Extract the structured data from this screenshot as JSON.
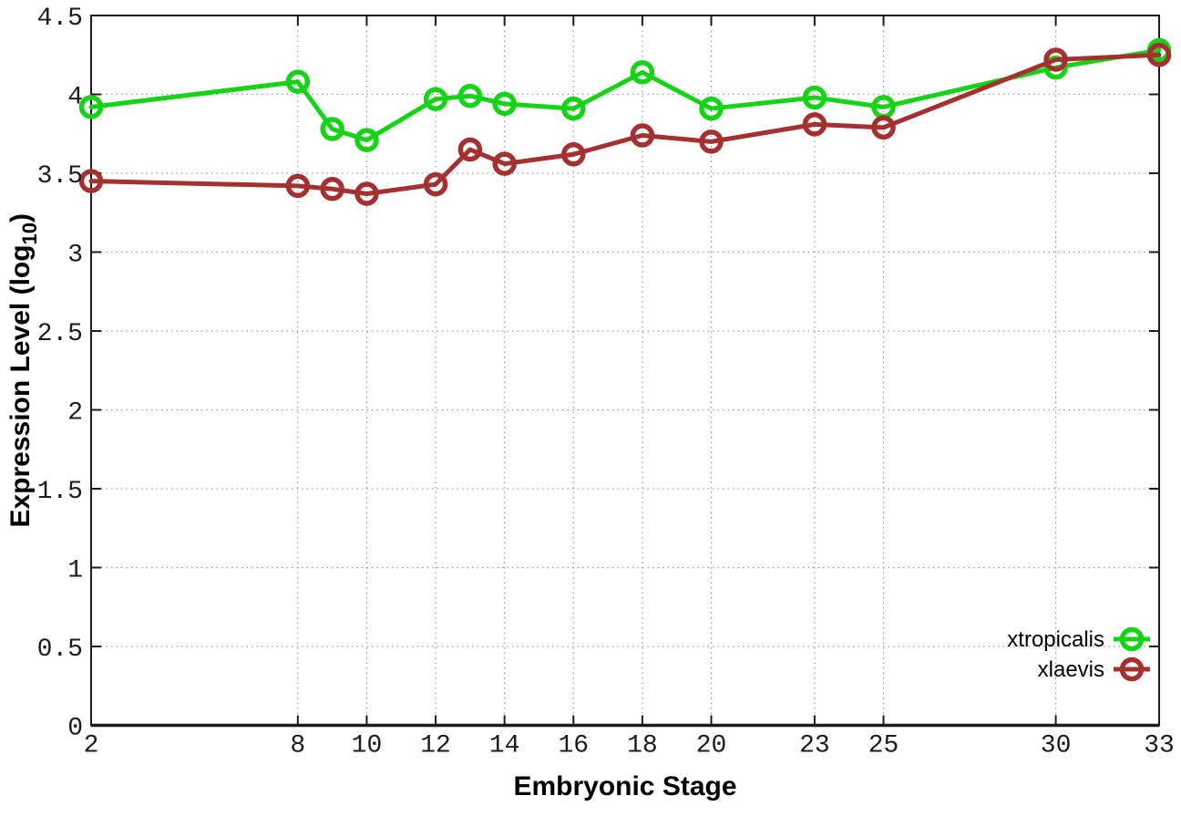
{
  "chart_data": {
    "type": "line",
    "title": "",
    "xlabel": "Embryonic Stage",
    "ylabel": "Expression Level (log10)",
    "ylabel_rich": {
      "prefix": "Expression Level (log",
      "sub": "10",
      "suffix": ")"
    },
    "xlim": [
      2,
      33
    ],
    "ylim": [
      0,
      4.5
    ],
    "x_ticks": [
      2,
      8,
      10,
      12,
      14,
      16,
      18,
      20,
      23,
      25,
      30,
      33
    ],
    "y_ticks": [
      0,
      0.5,
      1,
      1.5,
      2,
      2.5,
      3,
      3.5,
      4,
      4.5
    ],
    "grid": true,
    "legend_position": "bottom-right",
    "x": [
      2,
      8,
      9,
      10,
      12,
      13,
      14,
      16,
      18,
      20,
      23,
      25,
      30,
      33
    ],
    "series": [
      {
        "name": "xtropicalis",
        "color": "#15d415",
        "values": [
          3.92,
          4.08,
          3.78,
          3.71,
          3.97,
          3.99,
          3.94,
          3.91,
          4.14,
          3.91,
          3.98,
          3.92,
          4.17,
          4.28
        ]
      },
      {
        "name": "xlaevis",
        "color": "#a53030",
        "values": [
          3.45,
          3.42,
          3.4,
          3.37,
          3.43,
          3.65,
          3.56,
          3.62,
          3.74,
          3.7,
          3.81,
          3.79,
          4.22,
          4.25
        ]
      }
    ],
    "style_colors": {
      "border": "#1c1c1c",
      "grid": "#9a9a9a",
      "background": "#ffffff"
    }
  }
}
